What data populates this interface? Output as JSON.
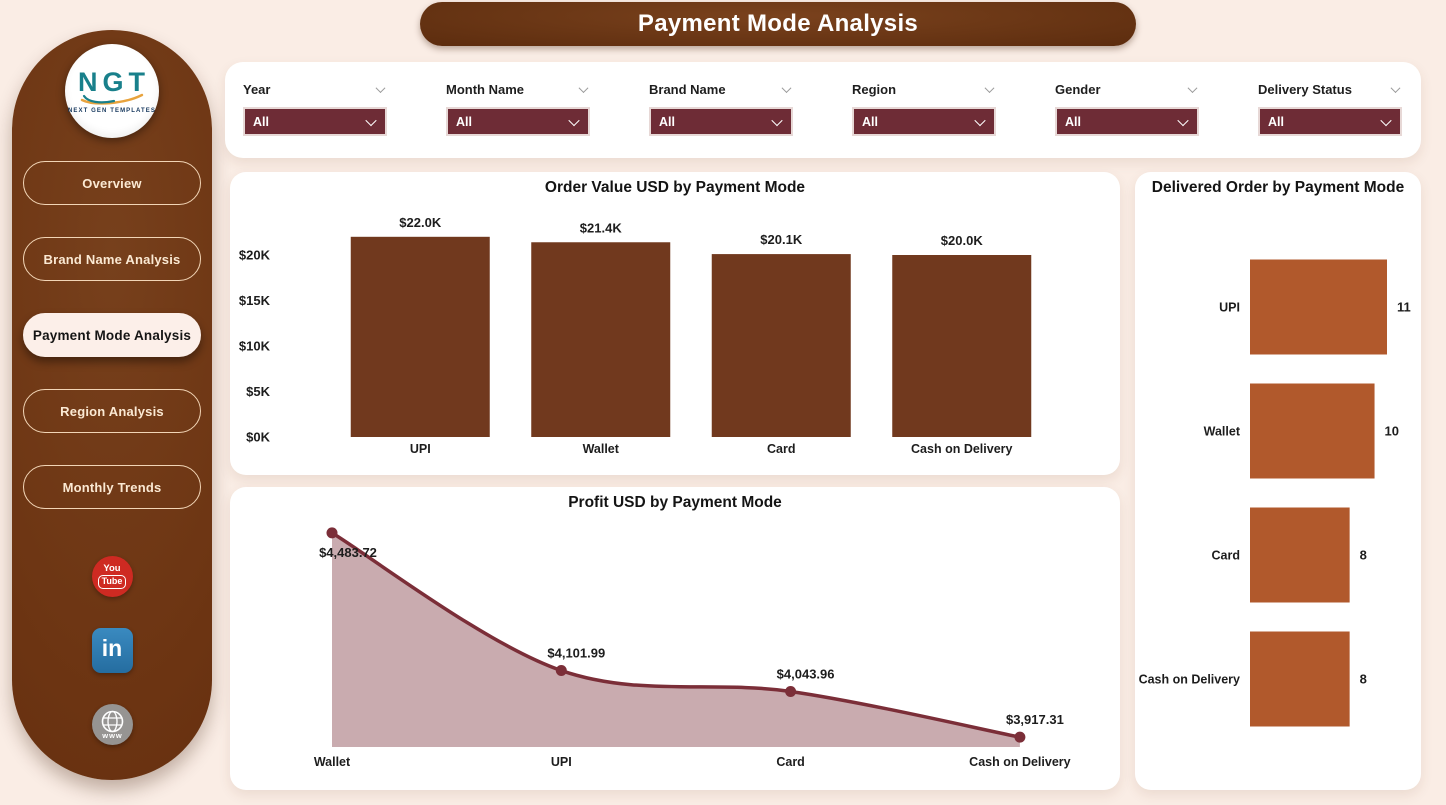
{
  "header": {
    "title": "Payment Mode Analysis"
  },
  "sidebar": {
    "logo": {
      "text": "NGT",
      "tagline": "NEXT GEN TEMPLATES"
    },
    "items": [
      {
        "label": "Overview",
        "active": false
      },
      {
        "label": "Brand Name Analysis",
        "active": false
      },
      {
        "label": "Payment Mode Analysis",
        "active": true
      },
      {
        "label": "Region Analysis",
        "active": false
      },
      {
        "label": "Monthly Trends",
        "active": false
      }
    ],
    "socials": [
      {
        "name": "youtube",
        "text_top": "You",
        "text_bottom": "Tube"
      },
      {
        "name": "linkedin",
        "text": "in"
      },
      {
        "name": "website",
        "text": "www"
      }
    ]
  },
  "filters": [
    {
      "label": "Year",
      "value": "All"
    },
    {
      "label": "Month Name",
      "value": "All"
    },
    {
      "label": "Brand Name",
      "value": "All"
    },
    {
      "label": "Region",
      "value": "All"
    },
    {
      "label": "Gender",
      "value": "All"
    },
    {
      "label": "Delivery Status",
      "value": "All"
    }
  ],
  "colors": {
    "background": "#FAEDE5",
    "sidebar_brown": "#6E3513",
    "banner_brown": "#5C2C0E",
    "slicer_maroon": "#6E2C36",
    "bar_brown": "#71391E",
    "bar_rust": "#B1592C",
    "area_line": "#7B2E38",
    "area_fill": "#C6A6AB",
    "card": "#FFFFFF"
  },
  "chart_data": [
    {
      "id": "order_value_by_payment_mode",
      "type": "bar",
      "title": "Order Value USD by Payment Mode",
      "categories": [
        "UPI",
        "Wallet",
        "Card",
        "Cash on Delivery"
      ],
      "values": [
        22.0,
        21.4,
        20.1,
        20.0
      ],
      "data_labels": [
        "$22.0K",
        "$21.4K",
        "$20.1K",
        "$20.0K"
      ],
      "xlabel": "",
      "ylabel": "",
      "y_ticks": {
        "values": [
          0,
          5,
          10,
          15,
          20
        ],
        "labels": [
          "$0K",
          "$5K",
          "$10K",
          "$15K",
          "$20K"
        ]
      },
      "ylim": [
        0,
        24
      ],
      "unit": "K USD",
      "grid": false,
      "bar_color": "#71391E"
    },
    {
      "id": "delivered_order_by_payment_mode",
      "type": "bar",
      "orientation": "horizontal",
      "title": "Delivered Order by Payment Mode",
      "categories": [
        "UPI",
        "Wallet",
        "Card",
        "Cash on Delivery"
      ],
      "values": [
        11,
        10,
        8,
        8
      ],
      "data_labels": [
        "11",
        "10",
        "8",
        "8"
      ],
      "xlim": [
        0,
        11
      ],
      "grid": false,
      "bar_color": "#B1592C"
    },
    {
      "id": "profit_usd_by_payment_mode",
      "type": "area",
      "title": "Profit USD by Payment Mode",
      "categories": [
        "Wallet",
        "UPI",
        "Card",
        "Cash on Delivery"
      ],
      "values": [
        4483.72,
        4101.99,
        4043.96,
        3917.31
      ],
      "data_labels": [
        "$4,483.72",
        "$4,101.99",
        "$4,043.96",
        "$3,917.31"
      ],
      "ylim": [
        3890,
        4500
      ],
      "grid": false,
      "line_color": "#7B2E38",
      "fill_color": "#C6A6AB",
      "marker": true
    }
  ]
}
